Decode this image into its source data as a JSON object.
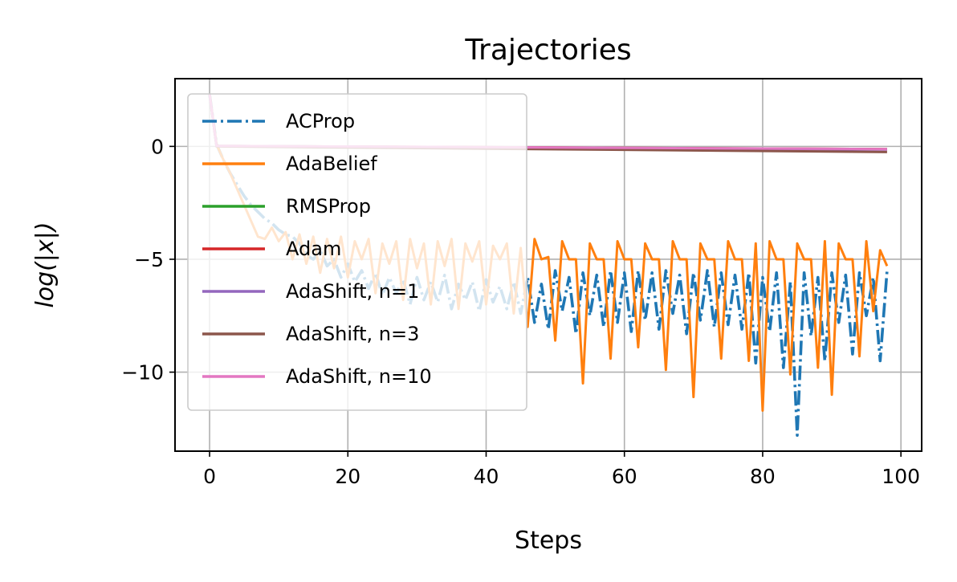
{
  "chart_data": {
    "type": "line",
    "title": "Trajectories",
    "xlabel": "Steps",
    "ylabel": "log(|x|)",
    "xlim": [
      -5,
      103
    ],
    "ylim": [
      -13.5,
      3.0
    ],
    "xticks": [
      0,
      20,
      40,
      60,
      80,
      100
    ],
    "yticks": [
      0,
      -5,
      -10
    ],
    "xtick_labels": [
      "0",
      "20",
      "40",
      "60",
      "80",
      "100"
    ],
    "ytick_labels": [
      "0",
      "−5",
      "−10"
    ],
    "grid": true,
    "legend_position": "upper-left",
    "series": [
      {
        "name": "ACProp",
        "color": "#1f77b4",
        "style": "dashdot",
        "x": [
          0,
          1,
          2,
          3,
          4,
          5,
          6,
          7,
          8,
          9,
          10,
          11,
          12,
          13,
          14,
          15,
          16,
          17,
          18,
          19,
          20,
          21,
          22,
          23,
          24,
          25,
          26,
          27,
          28,
          29,
          30,
          31,
          32,
          33,
          34,
          35,
          36,
          37,
          38,
          39,
          40,
          41,
          42,
          43,
          44,
          45,
          46,
          47,
          48,
          49,
          50,
          51,
          52,
          53,
          54,
          55,
          56,
          57,
          58,
          59,
          60,
          61,
          62,
          63,
          64,
          65,
          66,
          67,
          68,
          69,
          70,
          71,
          72,
          73,
          74,
          75,
          76,
          77,
          78,
          79,
          80,
          81,
          82,
          83,
          84,
          85,
          86,
          87,
          88,
          89,
          90,
          91,
          92,
          93,
          94,
          95,
          96,
          97,
          98
        ],
        "y": [
          2.3,
          0.1,
          -0.6,
          -1.2,
          -1.7,
          -2.2,
          -2.6,
          -2.9,
          -3.2,
          -3.4,
          -3.7,
          -3.9,
          -4.0,
          -4.3,
          -4.8,
          -5.0,
          -4.6,
          -5.3,
          -5.0,
          -5.8,
          -5.2,
          -6.0,
          -5.5,
          -6.3,
          -5.6,
          -6.6,
          -5.8,
          -6.5,
          -5.9,
          -7.0,
          -5.8,
          -6.8,
          -6.0,
          -6.9,
          -5.7,
          -7.2,
          -6.1,
          -6.8,
          -6.0,
          -7.3,
          -5.9,
          -6.9,
          -6.2,
          -7.2,
          -6.0,
          -7.4,
          -5.8,
          -7.8,
          -6.1,
          -8.1,
          -5.5,
          -7.3,
          -5.8,
          -8.3,
          -5.6,
          -7.5,
          -5.7,
          -8.0,
          -5.5,
          -7.8,
          -5.6,
          -8.2,
          -5.5,
          -7.7,
          -5.6,
          -8.1,
          -5.5,
          -7.4,
          -5.7,
          -8.3,
          -5.6,
          -7.7,
          -5.5,
          -8.0,
          -5.6,
          -7.9,
          -5.7,
          -8.1,
          -5.6,
          -9.6,
          -5.8,
          -8.2,
          -5.6,
          -9.8,
          -6.0,
          -12.8,
          -5.6,
          -8.4,
          -5.8,
          -9.5,
          -5.6,
          -7.8,
          -5.7,
          -9.2,
          -5.6,
          -7.5,
          -5.8,
          -9.5,
          -5.5
        ]
      },
      {
        "name": "AdaBelief",
        "color": "#ff7f0e",
        "style": "solid",
        "x": [
          0,
          1,
          2,
          3,
          4,
          5,
          6,
          7,
          8,
          9,
          10,
          11,
          12,
          13,
          14,
          15,
          16,
          17,
          18,
          19,
          20,
          21,
          22,
          23,
          24,
          25,
          26,
          27,
          28,
          29,
          30,
          31,
          32,
          33,
          34,
          35,
          36,
          37,
          38,
          39,
          40,
          41,
          42,
          43,
          44,
          45,
          46,
          47,
          48,
          49,
          50,
          51,
          52,
          53,
          54,
          55,
          56,
          57,
          58,
          59,
          60,
          61,
          62,
          63,
          64,
          65,
          66,
          67,
          68,
          69,
          70,
          71,
          72,
          73,
          74,
          75,
          76,
          77,
          78,
          79,
          80,
          81,
          82,
          83,
          84,
          85,
          86,
          87,
          88,
          89,
          90,
          91,
          92,
          93,
          94,
          95,
          96,
          97,
          98
        ],
        "y": [
          2.3,
          0.1,
          -0.6,
          -1.2,
          -1.9,
          -2.6,
          -3.3,
          -4.0,
          -4.1,
          -3.6,
          -4.2,
          -3.8,
          -5.0,
          -3.9,
          -5.2,
          -4.0,
          -5.6,
          -4.1,
          -5.4,
          -4.0,
          -5.8,
          -4.2,
          -5.0,
          -4.1,
          -6.5,
          -4.3,
          -5.2,
          -4.2,
          -6.8,
          -4.1,
          -5.4,
          -4.3,
          -7.0,
          -4.2,
          -5.3,
          -4.1,
          -7.2,
          -4.3,
          -5.1,
          -4.2,
          -7.0,
          -4.4,
          -5.0,
          -4.3,
          -7.4,
          -4.5,
          -8.0,
          -4.1,
          -5.0,
          -4.9,
          -8.6,
          -4.2,
          -5.0,
          -5.0,
          -10.5,
          -4.3,
          -5.0,
          -5.0,
          -9.4,
          -4.2,
          -5.0,
          -5.0,
          -8.9,
          -4.3,
          -5.0,
          -5.0,
          -9.9,
          -4.2,
          -5.0,
          -5.0,
          -11.1,
          -4.3,
          -5.0,
          -5.0,
          -9.4,
          -4.2,
          -5.0,
          -5.0,
          -9.5,
          -4.3,
          -11.7,
          -4.2,
          -5.0,
          -5.0,
          -10.1,
          -4.3,
          -5.0,
          -5.0,
          -9.8,
          -4.2,
          -11.0,
          -4.3,
          -5.0,
          -5.0,
          -9.3,
          -4.2,
          -7.3,
          -4.6,
          -5.3
        ]
      },
      {
        "name": "RMSProp",
        "color": "#2ca02c",
        "style": "solid",
        "x": [
          0,
          1,
          98
        ],
        "y": [
          2.3,
          0.02,
          -0.13
        ]
      },
      {
        "name": "Adam",
        "color": "#d62728",
        "style": "solid",
        "x": [
          0,
          1,
          98
        ],
        "y": [
          2.3,
          0.02,
          -0.12
        ]
      },
      {
        "name": "AdaShift, n=1",
        "color": "#9467bd",
        "style": "solid",
        "x": [
          0,
          1,
          98
        ],
        "y": [
          2.3,
          0.02,
          -0.14
        ]
      },
      {
        "name": "AdaShift, n=3",
        "color": "#8c564b",
        "style": "solid",
        "x": [
          0,
          1,
          98
        ],
        "y": [
          2.3,
          0.0,
          -0.25
        ]
      },
      {
        "name": "AdaShift, n=10",
        "color": "#e377c2",
        "style": "solid",
        "x": [
          0,
          1,
          98
        ],
        "y": [
          2.3,
          0.02,
          -0.12
        ]
      }
    ]
  }
}
